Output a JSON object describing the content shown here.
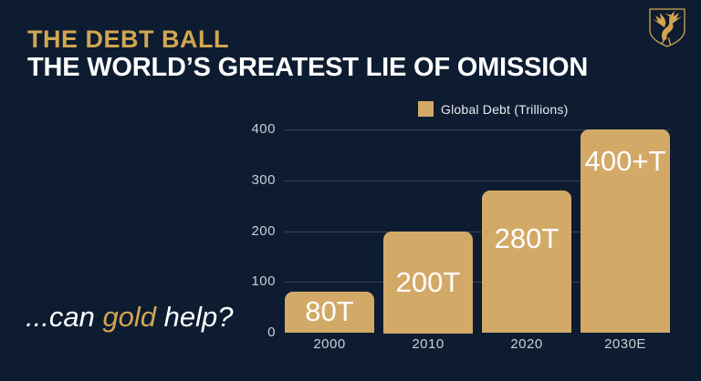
{
  "colors": {
    "background": "#0D1C30",
    "accent_gold": "#D2A650",
    "bar_gold": "#D3A967",
    "title_white": "#FFFFFF",
    "axis_text": "#C9CED6"
  },
  "header": {
    "kicker": "THE DEBT BALL",
    "title": "THE WORLD’S GREATEST LIE OF OMISSION"
  },
  "logo": {
    "icon": "bird-crest-icon"
  },
  "tagline": {
    "prefix": "...can ",
    "highlight": "gold",
    "suffix": " help?"
  },
  "chart_data": {
    "type": "bar",
    "title": "",
    "legend": [
      {
        "label": "Global Debt (Trillions)",
        "swatch_color": "#D3A967"
      }
    ],
    "legend_position": "top",
    "categories": [
      "2000",
      "2010",
      "2020",
      "2030E"
    ],
    "series": [
      {
        "name": "Global Debt (Trillions)",
        "values": [
          80,
          200,
          280,
          400
        ]
      }
    ],
    "bar_value_labels": [
      "80T",
      "200T",
      "280T",
      "400+T"
    ],
    "xlabel": "",
    "ylabel": "",
    "ylim": [
      0,
      400
    ],
    "yticks": [
      0,
      100,
      200,
      300,
      400
    ],
    "grid": "horizontal",
    "axis_lines": false,
    "bar_color": "#D3A967"
  }
}
